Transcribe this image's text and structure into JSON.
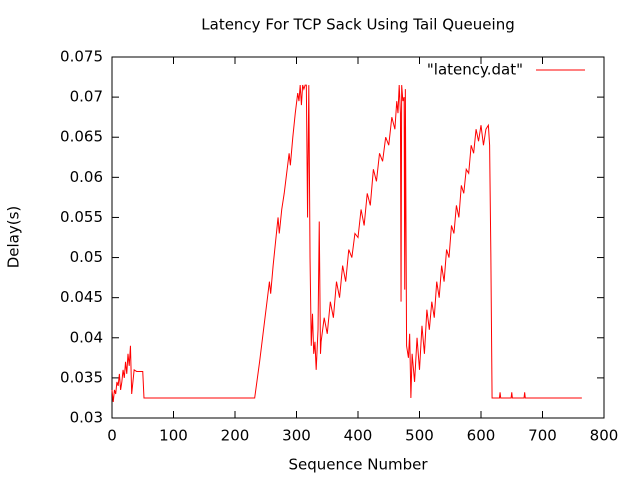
{
  "chart_data": {
    "type": "line",
    "title": "Latency For TCP Sack Using Tail Queueing",
    "x_label": "Sequence Number",
    "y_label": "Delay(s)",
    "x": [
      0,
      2,
      4,
      6,
      8,
      10,
      12,
      14,
      16,
      18,
      20,
      22,
      24,
      26,
      28,
      30,
      32,
      34,
      36,
      40,
      50,
      52,
      100,
      200,
      232,
      240,
      248,
      252,
      256,
      258,
      262,
      266,
      270,
      272,
      276,
      280,
      284,
      288,
      290,
      294,
      298,
      302,
      304,
      306,
      308,
      310,
      312,
      314,
      316,
      318,
      320,
      322,
      324,
      326,
      328,
      330,
      332,
      335,
      337,
      339,
      340,
      345,
      350,
      355,
      360,
      365,
      370,
      375,
      380,
      385,
      390,
      395,
      400,
      405,
      410,
      415,
      420,
      425,
      430,
      435,
      440,
      445,
      450,
      455,
      460,
      463,
      465,
      467,
      469,
      470,
      471,
      473,
      475,
      476,
      477,
      479,
      482,
      484,
      486,
      488,
      492,
      496,
      500,
      504,
      508,
      512,
      516,
      520,
      524,
      528,
      532,
      536,
      540,
      544,
      548,
      552,
      556,
      560,
      564,
      568,
      572,
      576,
      580,
      584,
      588,
      592,
      596,
      600,
      604,
      608,
      612,
      614,
      616,
      618,
      630,
      631,
      632,
      649,
      650,
      651,
      670,
      671,
      672,
      764
    ],
    "series": [
      {
        "name": "\"latency.dat\"",
        "color": "#ff0000",
        "values": [
          0.0335,
          0.032,
          0.0335,
          0.033,
          0.0345,
          0.034,
          0.0355,
          0.0335,
          0.0345,
          0.036,
          0.035,
          0.037,
          0.0355,
          0.038,
          0.0365,
          0.039,
          0.033,
          0.0345,
          0.036,
          0.0358,
          0.0358,
          0.0325,
          0.0325,
          0.0325,
          0.0325,
          0.037,
          0.042,
          0.0445,
          0.047,
          0.0455,
          0.049,
          0.052,
          0.055,
          0.053,
          0.056,
          0.058,
          0.0605,
          0.063,
          0.0615,
          0.065,
          0.068,
          0.0705,
          0.0695,
          0.0715,
          0.069,
          0.0715,
          0.071,
          0.0715,
          0.0715,
          0.055,
          0.0715,
          0.05,
          0.039,
          0.043,
          0.038,
          0.0395,
          0.036,
          0.041,
          0.0545,
          0.038,
          0.0395,
          0.0425,
          0.0405,
          0.0445,
          0.0425,
          0.047,
          0.045,
          0.049,
          0.047,
          0.051,
          0.05,
          0.053,
          0.0525,
          0.056,
          0.054,
          0.058,
          0.0565,
          0.061,
          0.0595,
          0.063,
          0.062,
          0.065,
          0.064,
          0.0675,
          0.066,
          0.0695,
          0.068,
          0.0715,
          0.068,
          0.0445,
          0.0715,
          0.0695,
          0.07,
          0.046,
          0.071,
          0.039,
          0.0375,
          0.0405,
          0.0325,
          0.038,
          0.0345,
          0.04,
          0.036,
          0.0415,
          0.038,
          0.0435,
          0.041,
          0.0445,
          0.0425,
          0.047,
          0.045,
          0.049,
          0.047,
          0.051,
          0.05,
          0.054,
          0.053,
          0.0565,
          0.055,
          0.059,
          0.058,
          0.061,
          0.0605,
          0.064,
          0.063,
          0.066,
          0.0645,
          0.0665,
          0.064,
          0.066,
          0.0665,
          0.064,
          0.0505,
          0.0325,
          0.0325,
          0.0332,
          0.0325,
          0.0325,
          0.0332,
          0.0325,
          0.0325,
          0.0332,
          0.0325,
          0.0325
        ]
      }
    ],
    "xlim": [
      0,
      800
    ],
    "xticks": [
      0,
      100,
      200,
      300,
      400,
      500,
      600,
      700,
      800
    ],
    "ylim": [
      0.03,
      0.075
    ],
    "yticks": [
      0.03,
      0.035,
      0.04,
      0.045,
      0.05,
      0.055,
      0.06,
      0.065,
      0.07,
      0.075
    ],
    "legend": "top-right",
    "grid": false
  }
}
